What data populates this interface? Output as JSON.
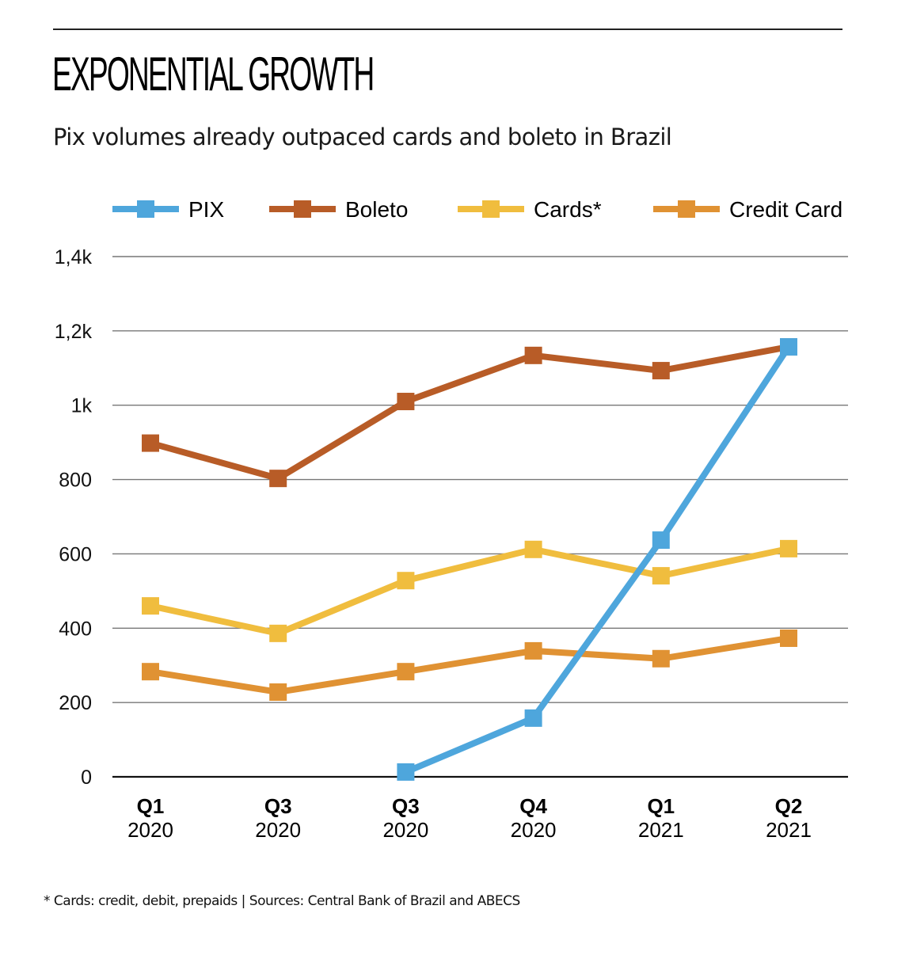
{
  "header": {
    "title": "EXPONENTIAL GROWTH",
    "subtitle": "Pix volumes already outpaced cards and boleto in Brazil"
  },
  "footnote": "* Cards: credit, debit, prepaids | Sources: Central Bank of Brazil and ABECS",
  "chart_data": {
    "type": "line",
    "title": "EXPONENTIAL GROWTH",
    "subtitle": "Pix volumes already outpaced cards and boleto in Brazil",
    "xlabel": "",
    "ylabel": "",
    "categories": [
      {
        "quarter": "Q1",
        "year": "2020"
      },
      {
        "quarter": "Q3",
        "year": "2020"
      },
      {
        "quarter": "Q3",
        "year": "2020"
      },
      {
        "quarter": "Q4",
        "year": "2020"
      },
      {
        "quarter": "Q1",
        "year": "2021"
      },
      {
        "quarter": "Q2",
        "year": "2021"
      }
    ],
    "ylim": [
      0,
      1400
    ],
    "yticks": [
      0,
      200,
      400,
      600,
      800,
      1000,
      1200,
      1400
    ],
    "ytick_labels": [
      "0",
      "200",
      "400",
      "600",
      "800",
      "1k",
      "1,2k",
      "1,4k"
    ],
    "grid": true,
    "legend_position": "top",
    "marker": "square",
    "series": [
      {
        "name": "PIX",
        "color": "#4ea6dc",
        "values": [
          null,
          null,
          13,
          158,
          637,
          1157
        ]
      },
      {
        "name": "Boleto",
        "color": "#b85c27",
        "values": [
          898,
          803,
          1010,
          1134,
          1093,
          1157
        ]
      },
      {
        "name": "Cards*",
        "color": "#f0bd3e",
        "values": [
          460,
          386,
          528,
          612,
          541,
          614
        ]
      },
      {
        "name": "Credit Card",
        "color": "#e09233",
        "values": [
          283,
          228,
          283,
          339,
          318,
          373
        ]
      }
    ],
    "draw_order": [
      "Credit Card",
      "Cards*",
      "Boleto",
      "PIX"
    ]
  }
}
